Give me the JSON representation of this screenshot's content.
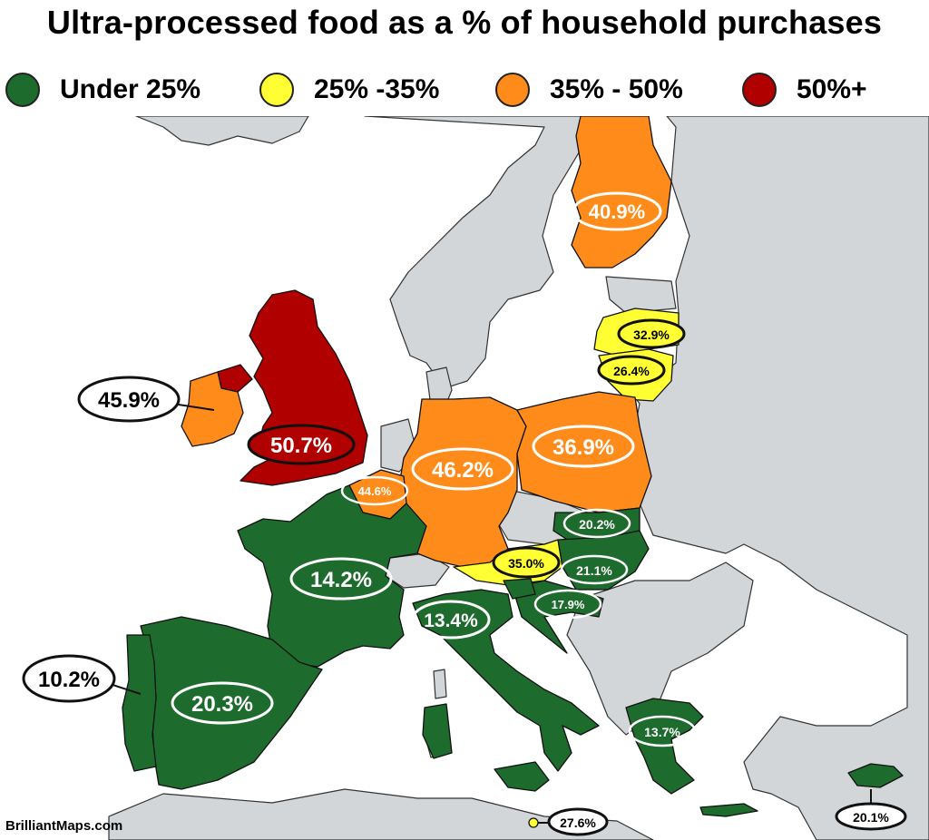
{
  "title": "Ultra-processed food as a % of household purchases",
  "legend": [
    {
      "label": "Under 25%",
      "color": "#1e6b2e"
    },
    {
      "label": "25% -35%",
      "color": "#ffff33"
    },
    {
      "label": "35% - 50%",
      "color": "#ff8c1a"
    },
    {
      "label": "50%+",
      "color": "#b00000"
    }
  ],
  "colors": {
    "sea": "#ffffff",
    "land": "#d3d6d8",
    "border": "#111111",
    "green": "#1e6b2e",
    "yellow": "#ffff33",
    "orange": "#ff8c1a",
    "red": "#b00000"
  },
  "countries": {
    "uk": {
      "name": "United Kingdom",
      "value": "50.7%",
      "category": "50%+"
    },
    "ireland": {
      "name": "Ireland",
      "value": "45.9%",
      "category": "35% - 50%"
    },
    "germany": {
      "name": "Germany",
      "value": "46.2%",
      "category": "35% - 50%"
    },
    "belgium": {
      "name": "Belgium",
      "value": "44.6%",
      "category": "35% - 50%"
    },
    "finland": {
      "name": "Finland",
      "value": "40.9%",
      "category": "35% - 50%"
    },
    "poland": {
      "name": "Poland",
      "value": "36.9%",
      "category": "35% - 50%"
    },
    "latvia": {
      "name": "Latvia",
      "value": "32.9%",
      "category": "25% -35%"
    },
    "lithuania": {
      "name": "Lithuania",
      "value": "26.4%",
      "category": "25% -35%"
    },
    "austria": {
      "name": "Austria",
      "value": "35.0%",
      "category": "25% -35%"
    },
    "malta": {
      "name": "Malta",
      "value": "27.6%",
      "category": "25% -35%"
    },
    "france": {
      "name": "France",
      "value": "14.2%",
      "category": "Under 25%"
    },
    "spain": {
      "name": "Spain",
      "value": "20.3%",
      "category": "Under 25%"
    },
    "portugal": {
      "name": "Portugal",
      "value": "10.2%",
      "category": "Under 25%"
    },
    "italy": {
      "name": "Italy",
      "value": "13.4%",
      "category": "Under 25%"
    },
    "slovakia": {
      "name": "Slovakia",
      "value": "20.2%",
      "category": "Under 25%"
    },
    "hungary": {
      "name": "Hungary",
      "value": "21.1%",
      "category": "Under 25%"
    },
    "croatia": {
      "name": "Croatia",
      "value": "17.9%",
      "category": "Under 25%"
    },
    "greece": {
      "name": "Greece",
      "value": "13.7%",
      "category": "Under 25%"
    },
    "cyprus": {
      "name": "Cyprus",
      "value": "20.1%",
      "category": "Under 25%"
    }
  },
  "source": "BrilliantMaps.com"
}
